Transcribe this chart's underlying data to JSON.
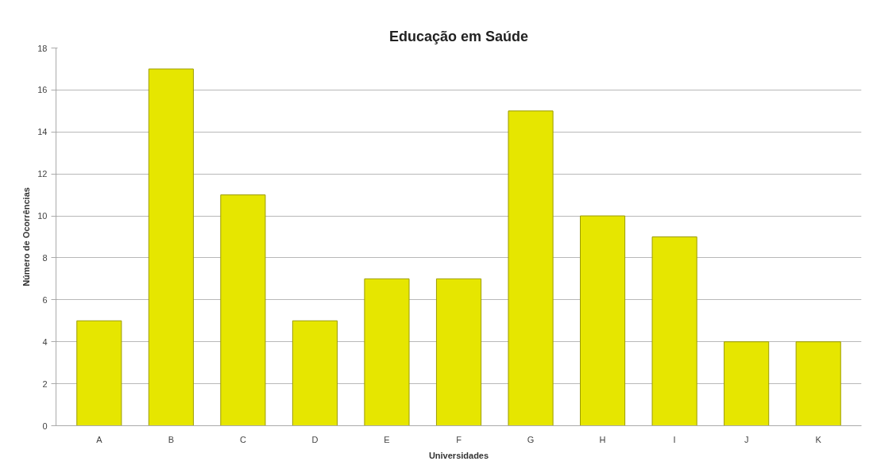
{
  "chart_data": {
    "type": "bar",
    "title": "Educação em Saúde",
    "xlabel": "Universidades",
    "ylabel": "Número de Ocorrências",
    "categories": [
      "A",
      "B",
      "C",
      "D",
      "E",
      "F",
      "G",
      "H",
      "I",
      "J",
      "K"
    ],
    "values": [
      5,
      17,
      11,
      5,
      7,
      7,
      15,
      10,
      9,
      4,
      4
    ],
    "color": "#e6e600",
    "ylim": [
      0,
      18
    ],
    "yticks": [
      0,
      2,
      4,
      6,
      8,
      10,
      12,
      14,
      16,
      18
    ],
    "grid": "y"
  }
}
